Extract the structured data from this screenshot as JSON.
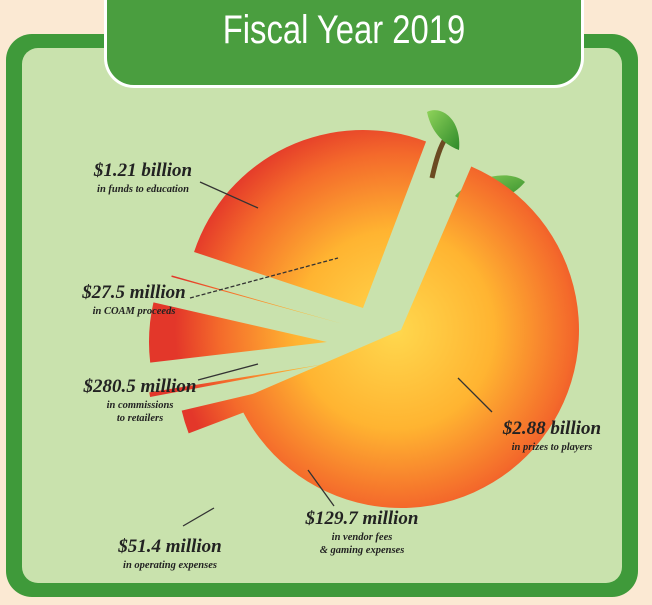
{
  "header": {
    "title": "Fiscal Year 2019"
  },
  "colors": {
    "frame_green": "#3f9a3a",
    "panel_green": "#c9e2ad",
    "peach_center": "#ffcf4a",
    "peach_edge": "#e8402a",
    "leaf": "#3e9a34"
  },
  "chart_data": {
    "type": "pie",
    "title": "Fiscal Year 2019",
    "units": "USD",
    "slices": [
      {
        "id": "education",
        "value": 1210000000,
        "value_label": "$1.21 billion",
        "description": "in funds to education"
      },
      {
        "id": "coam",
        "value": 27500000,
        "value_label": "$27.5 million",
        "description": "in COAM proceeds"
      },
      {
        "id": "commissions",
        "value": 280500000,
        "value_label": "$280.5 million",
        "description_lines": [
          "in commissions",
          "to retailers"
        ]
      },
      {
        "id": "operating",
        "value": 51400000,
        "value_label": "$51.4 million",
        "description": "in operating expenses"
      },
      {
        "id": "vendor",
        "value": 129700000,
        "value_label": "$129.7 million",
        "description_lines": [
          "in vendor fees",
          "& gaming expenses"
        ]
      },
      {
        "id": "prizes",
        "value": 2880000000,
        "value_label": "$2.88 billion",
        "description": "in prizes to players"
      }
    ]
  }
}
